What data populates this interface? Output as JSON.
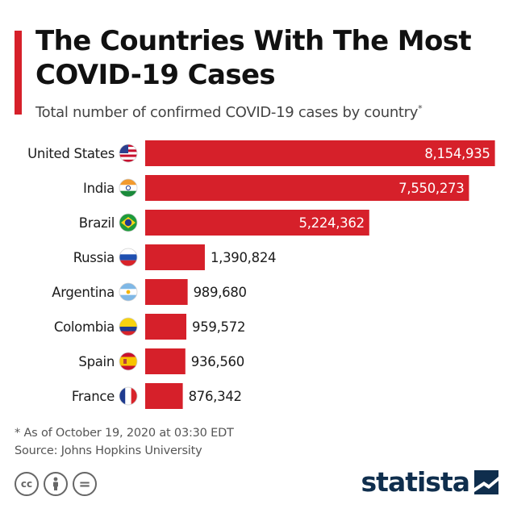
{
  "header": {
    "title": "The Countries With The Most COVID-19 Cases",
    "subtitle": "Total number of confirmed COVID-19 cases by country",
    "subtitle_mark": "*"
  },
  "chart_data": {
    "type": "bar",
    "orientation": "horizontal",
    "categories": [
      "United States",
      "India",
      "Brazil",
      "Russia",
      "Argentina",
      "Colombia",
      "Spain",
      "France"
    ],
    "values": [
      8154935,
      7550273,
      5224362,
      1390824,
      989680,
      959572,
      936560,
      876342
    ],
    "value_labels": [
      "8,154,935",
      "7,550,273",
      "5,224,362",
      "1,390,824",
      "989,680",
      "959,572",
      "936,560",
      "876,342"
    ],
    "flags": [
      "us-flag-icon",
      "india-flag-icon",
      "brazil-flag-icon",
      "russia-flag-icon",
      "argentina-flag-icon",
      "colombia-flag-icon",
      "spain-flag-icon",
      "france-flag-icon"
    ],
    "bar_color": "#d6202a",
    "xlim": [
      0,
      8200000
    ],
    "grid": false,
    "legend": "none"
  },
  "footer": {
    "note": "* As of October 19, 2020 at 03:30 EDT",
    "source": "Source: Johns Hopkins University",
    "license_icons": [
      "cc-icon",
      "by-person-icon",
      "nd-equals-icon"
    ],
    "license_glyphs": [
      "cc",
      "",
      "="
    ],
    "brand": "statista"
  },
  "colors": {
    "accent": "#d6202a",
    "brand": "#0f2e4d"
  }
}
